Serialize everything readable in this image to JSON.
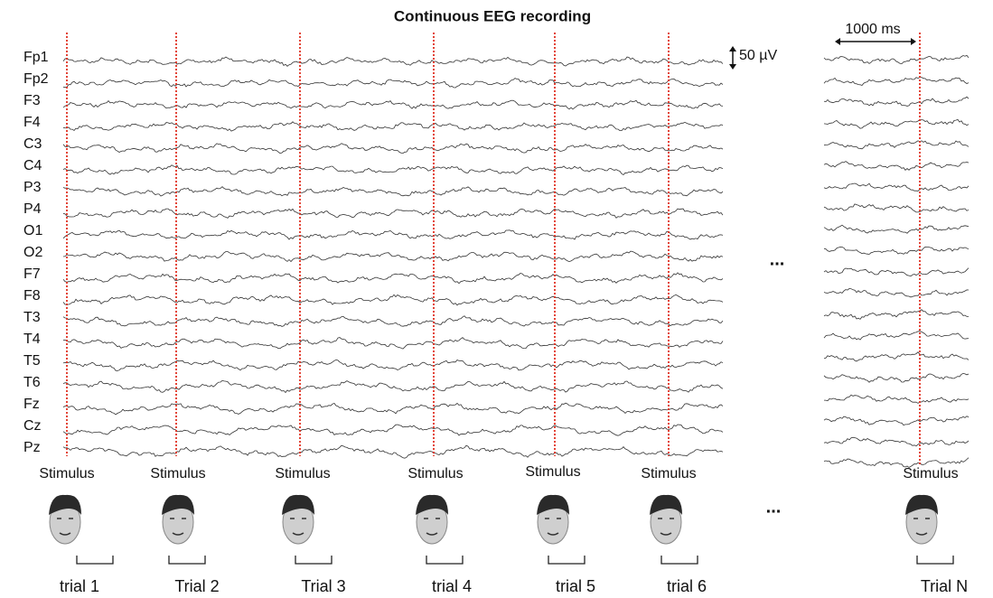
{
  "title": "Continuous EEG recording",
  "channels": [
    "Fp1",
    "Fp2",
    "F3",
    "F4",
    "C3",
    "C4",
    "P3",
    "P4",
    "O1",
    "O2",
    "F7",
    "F8",
    "T3",
    "T4",
    "T5",
    "T6",
    "Fz",
    "Cz",
    "Pz"
  ],
  "scale": {
    "amplitude": "50 µV",
    "time": "1000 ms"
  },
  "continuation": "...",
  "stimuli": [
    "Stimulus",
    "Stimulus",
    "Stimulus",
    "Stimulus",
    "Stimulus",
    "Stimulus",
    "Stimulus"
  ],
  "trials": [
    "trial 1",
    "Trial 2",
    "Trial 3",
    "trial 4",
    "trial 5",
    "trial 6",
    "Trial N"
  ]
}
